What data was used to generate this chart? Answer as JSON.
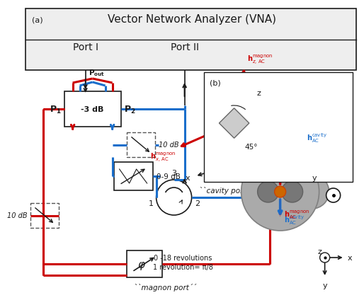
{
  "title": "Vector Network Analyzer (VNA)",
  "label_a": "(a)",
  "label_b": "(b)",
  "port1": "Port I",
  "port2": "Port II",
  "coupler_label": "-3 dB",
  "attenuator1": "10 dB",
  "attenuator2": "0-9 dB",
  "attenuator3": "10 dB",
  "phase_text1": "0 -18 revolutions",
  "phase_text2": "1 revolution= π/8",
  "cavity_port": "``cavity port´´",
  "magnon_port": "``magnon port´´",
  "port_numbers": [
    "1",
    "2",
    "3"
  ],
  "angle_45": "45°",
  "red_color": "#cc0000",
  "blue_color": "#1a6ecb",
  "black_color": "#1a1a1a",
  "light_gray": "#eeeeee",
  "fig_bg": "#ffffff"
}
